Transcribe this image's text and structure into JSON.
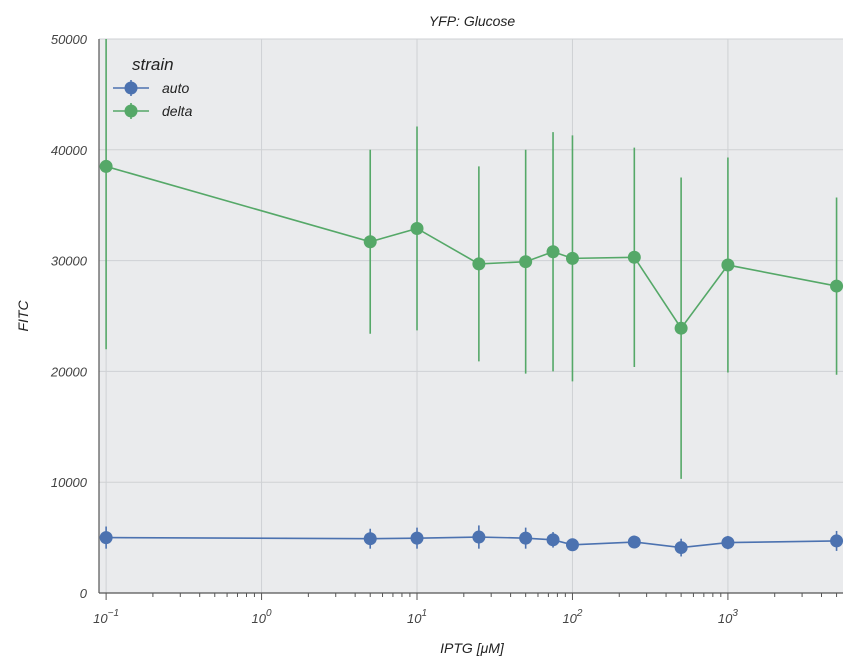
{
  "chart_data": {
    "type": "line",
    "title": "YFP: Glucose",
    "xlabel": "IPTG [μM]",
    "ylabel": "FITC",
    "xscale": "log",
    "xlim": [
      0.09,
      5500
    ],
    "ylim": [
      0,
      50000
    ],
    "x_tick_values": [
      0.1,
      1,
      10,
      100,
      1000
    ],
    "x_tick_labels": [
      {
        "base": "10",
        "exp": "−1"
      },
      {
        "base": "10",
        "exp": "0"
      },
      {
        "base": "10",
        "exp": "1"
      },
      {
        "base": "10",
        "exp": "2"
      },
      {
        "base": "10",
        "exp": "3"
      }
    ],
    "y_ticks": [
      0,
      10000,
      20000,
      30000,
      40000,
      50000
    ],
    "grid": true,
    "legend": {
      "title": "strain",
      "placement": "top-left"
    },
    "series": [
      {
        "name": "auto",
        "color": "#4c72b0",
        "x": [
          0.1,
          5,
          10,
          25,
          50,
          75,
          100,
          250,
          500,
          1000,
          5000
        ],
        "y": [
          5000,
          4900,
          4950,
          5050,
          4950,
          4800,
          4350,
          4600,
          4100,
          4550,
          4700
        ],
        "err": [
          1000,
          900,
          950,
          1050,
          950,
          700,
          500,
          500,
          800,
          600,
          900
        ]
      },
      {
        "name": "delta",
        "color": "#55a868",
        "x": [
          0.1,
          5,
          10,
          25,
          50,
          75,
          100,
          250,
          500,
          1000,
          5000
        ],
        "y": [
          38500,
          31700,
          32900,
          29700,
          29900,
          30800,
          30200,
          30300,
          23900,
          29600,
          27700
        ],
        "err": [
          16500,
          8300,
          9200,
          8800,
          10100,
          10800,
          11100,
          9900,
          13600,
          9700,
          8000
        ]
      }
    ]
  }
}
